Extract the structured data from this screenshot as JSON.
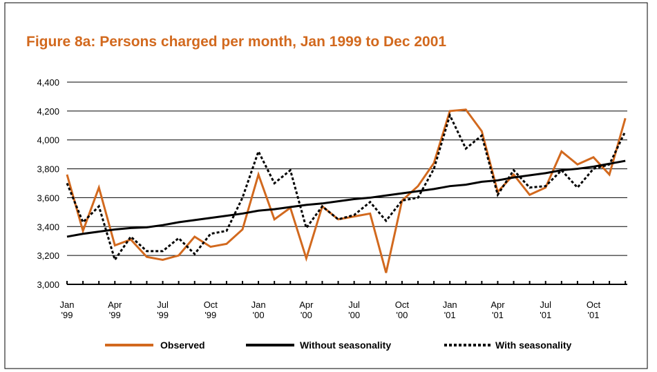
{
  "chart_data": {
    "type": "line",
    "title": "Figure 8a: Persons charged per month, Jan 1999 to Dec 2001",
    "categories": [
      [
        "Jan",
        "'99"
      ],
      null,
      null,
      [
        "Apr",
        "'99"
      ],
      null,
      null,
      [
        "Jul",
        "'99"
      ],
      null,
      null,
      [
        "Oct",
        "'99"
      ],
      null,
      null,
      [
        "Jan",
        "'00"
      ],
      null,
      null,
      [
        "Apr",
        "'00"
      ],
      null,
      null,
      [
        "Jul",
        "'00"
      ],
      null,
      null,
      [
        "Oct",
        "'00"
      ],
      null,
      null,
      [
        "Jan",
        "'01"
      ],
      null,
      null,
      [
        "Apr",
        "'01"
      ],
      null,
      null,
      [
        "Jul",
        "'01"
      ],
      null,
      null,
      [
        "Oct",
        "'01"
      ],
      null,
      null
    ],
    "series": [
      {
        "name": "Observed",
        "color": "#d2691e",
        "dash": "solid",
        "values": [
          3760,
          3370,
          3670,
          3270,
          3310,
          3190,
          3170,
          3200,
          3330,
          3260,
          3280,
          3380,
          3760,
          3450,
          3530,
          3180,
          3540,
          3450,
          3470,
          3490,
          3080,
          3580,
          3680,
          3840,
          4200,
          4210,
          4060,
          3640,
          3760,
          3620,
          3670,
          3920,
          3830,
          3880,
          3760,
          4150
        ]
      },
      {
        "name": "Without seasonality",
        "color": "#000000",
        "dash": "solid",
        "values": [
          3330,
          3350,
          3365,
          3380,
          3390,
          3395,
          3410,
          3430,
          3445,
          3460,
          3475,
          3490,
          3510,
          3520,
          3535,
          3550,
          3560,
          3575,
          3590,
          3600,
          3615,
          3630,
          3645,
          3660,
          3680,
          3690,
          3710,
          3720,
          3740,
          3755,
          3770,
          3790,
          3800,
          3815,
          3835,
          3855
        ]
      },
      {
        "name": "With seasonality",
        "color": "#000000",
        "dash": "dotted",
        "values": [
          3700,
          3430,
          3540,
          3170,
          3330,
          3230,
          3230,
          3320,
          3210,
          3350,
          3370,
          3600,
          3920,
          3700,
          3790,
          3390,
          3540,
          3450,
          3480,
          3570,
          3440,
          3580,
          3600,
          3800,
          4170,
          3940,
          4030,
          3620,
          3790,
          3670,
          3680,
          3790,
          3670,
          3800,
          3830,
          4060
        ]
      }
    ],
    "ylim": [
      3000,
      4400
    ],
    "yticks": [
      {
        "value": 3000,
        "label": "3,000"
      },
      {
        "value": 3200,
        "label": "3,200"
      },
      {
        "value": 3400,
        "label": "3,400"
      },
      {
        "value": 3600,
        "label": "3,600"
      },
      {
        "value": 3800,
        "label": "3,800"
      },
      {
        "value": 4000,
        "label": "4,000"
      },
      {
        "value": 4200,
        "label": "4,200"
      },
      {
        "value": 4400,
        "label": "4,400"
      }
    ],
    "grid": true
  }
}
